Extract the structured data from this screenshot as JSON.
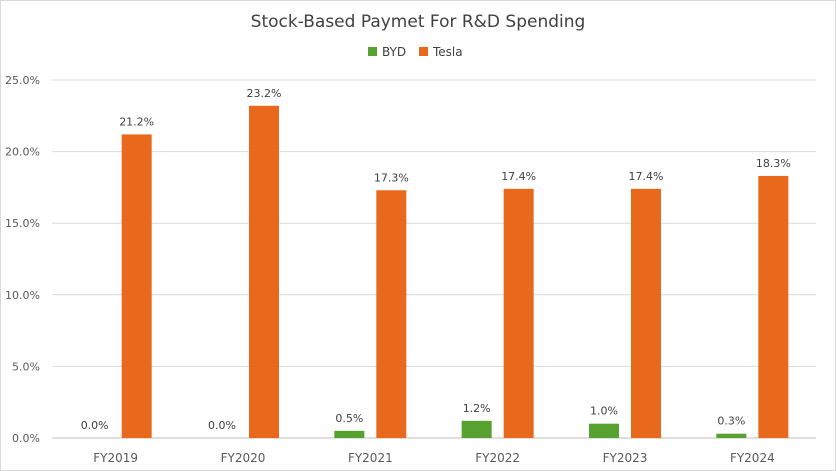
{
  "chart_data": {
    "type": "bar",
    "title": "Stock-Based Paymet For R&D Spending",
    "categories": [
      "FY2019",
      "FY2020",
      "FY2021",
      "FY2022",
      "FY2023",
      "FY2024"
    ],
    "series": [
      {
        "name": "BYD",
        "color": "#56a12f",
        "values": [
          0.0,
          0.0,
          0.5,
          1.2,
          1.0,
          0.3
        ],
        "labels": [
          "0.0%",
          "0.0%",
          "0.5%",
          "1.2%",
          "1.0%",
          "0.3%"
        ]
      },
      {
        "name": "Tesla",
        "color": "#e8681c",
        "values": [
          21.2,
          23.2,
          17.3,
          17.4,
          17.4,
          18.3
        ],
        "labels": [
          "21.2%",
          "23.2%",
          "17.3%",
          "17.4%",
          "17.4%",
          "18.3%"
        ]
      }
    ],
    "ylim": [
      0,
      25
    ],
    "yticks": [
      "0.0%",
      "5.0%",
      "10.0%",
      "15.0%",
      "20.0%",
      "25.0%"
    ],
    "ytick_values": [
      0,
      5,
      10,
      15,
      20,
      25
    ],
    "xlabel": "",
    "ylabel": "",
    "grid": true,
    "legend_position": "top-center"
  }
}
